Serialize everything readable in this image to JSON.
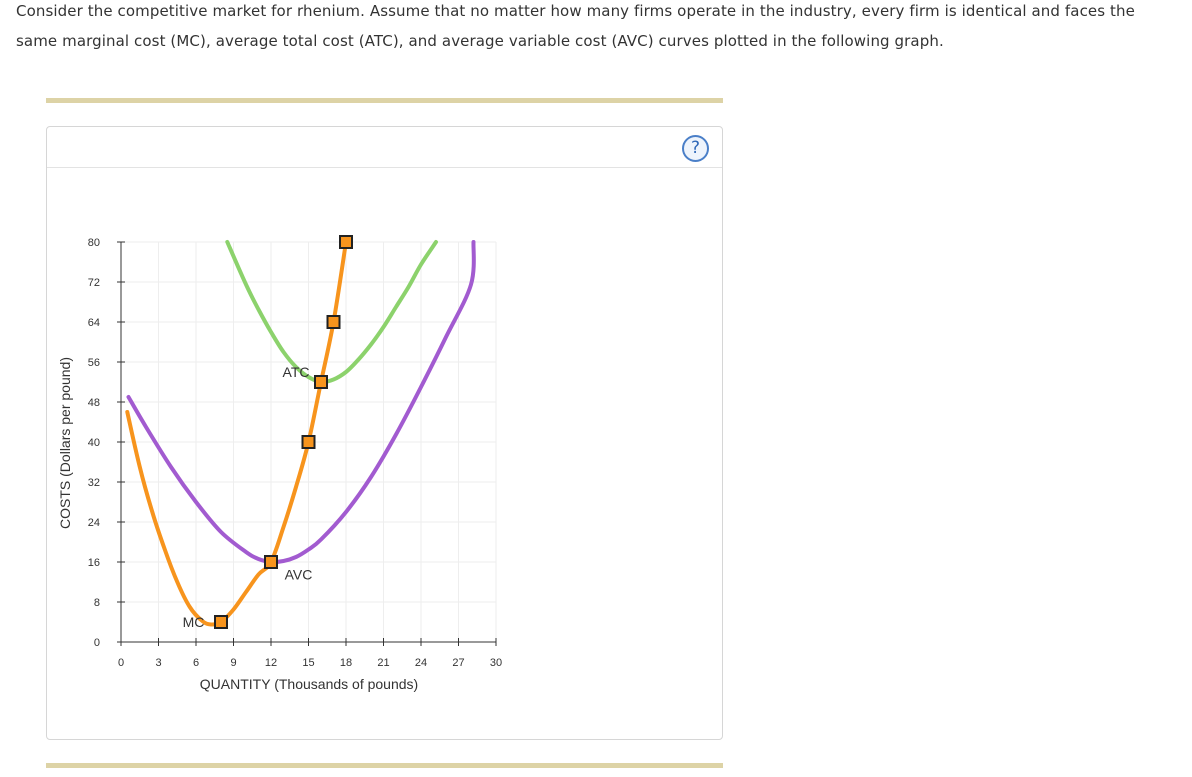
{
  "prompt": {
    "text": "Consider the competitive market for rhenium. Assume that no matter how many firms operate in the industry, every firm is identical and faces the same marginal cost (MC), average total cost (ATC), and average variable cost (AVC) curves plotted in the following graph."
  },
  "panel": {
    "help_icon": "question-circle-icon",
    "help_text": "?"
  },
  "colors": {
    "mc": "#f7941d",
    "atc": "#8cd26c",
    "avc": "#a25bd0",
    "marker_fill": "#f7941d",
    "marker_stroke": "#222222",
    "grid": "#eeeeee",
    "axis": "#333333",
    "rule": "#ddd3a6"
  },
  "chart_data": {
    "type": "line",
    "xlabel": "QUANTITY (Thousands of pounds)",
    "ylabel": "COSTS (Dollars per pound)",
    "xlim": [
      0,
      30
    ],
    "ylim": [
      0,
      80
    ],
    "xticks": [
      0,
      3,
      6,
      9,
      12,
      15,
      18,
      21,
      24,
      27,
      30
    ],
    "yticks": [
      0,
      8,
      16,
      24,
      32,
      40,
      48,
      56,
      64,
      72,
      80
    ],
    "grid": true,
    "series": [
      {
        "name": "MC",
        "label": "MC",
        "color": "#f7941d",
        "x": [
          0.5,
          1.5,
          2.5,
          3.5,
          4.5,
          5.5,
          6.5,
          7.2,
          8,
          9,
          10,
          11,
          12,
          13,
          14,
          15,
          16,
          17,
          18
        ],
        "y": [
          46,
          35,
          26,
          18.5,
          12,
          7,
          4.2,
          3.5,
          4,
          6.5,
          10,
          13.5,
          16,
          23,
          31,
          40,
          52,
          64,
          80
        ]
      },
      {
        "name": "ATC",
        "label": "ATC",
        "color": "#8cd26c",
        "x": [
          8.5,
          10,
          11,
          12,
          13,
          14,
          15,
          16,
          17,
          18,
          19,
          20,
          21,
          22,
          23,
          24,
          25.2
        ],
        "y": [
          80,
          71.5,
          66.5,
          62,
          58,
          55,
          53,
          52,
          52.5,
          54,
          56.5,
          59.5,
          63,
          67,
          71,
          75.5,
          80
        ]
      },
      {
        "name": "AVC",
        "label": "AVC",
        "color": "#a25bd0",
        "x": [
          0.6,
          2,
          4,
          6,
          8,
          10,
          11,
          12,
          13,
          14,
          15,
          16,
          18,
          20,
          22,
          24,
          26,
          28,
          28.2
        ],
        "y": [
          49,
          43,
          35,
          28,
          22,
          18,
          16.6,
          16,
          16.2,
          17,
          18.5,
          20.5,
          26,
          33,
          41.5,
          51,
          61,
          71.5,
          80
        ]
      }
    ],
    "markers": {
      "name": "MC points",
      "x": [
        8,
        12,
        15,
        16,
        17,
        18
      ],
      "y": [
        4,
        16,
        40,
        52,
        64,
        80
      ]
    },
    "annotations": [
      {
        "text": "ATC",
        "x": 14,
        "y": 54
      },
      {
        "text": "AVC",
        "x": 14.2,
        "y": 13.5
      },
      {
        "text": "MC",
        "x": 5.8,
        "y": 4
      }
    ]
  }
}
